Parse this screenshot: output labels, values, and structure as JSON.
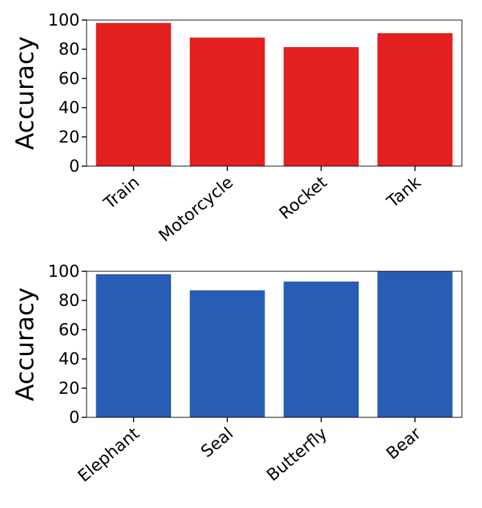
{
  "chart_data": [
    {
      "type": "bar",
      "categories": [
        "Train",
        "Motorcycle",
        "Rocket",
        "Tank"
      ],
      "values": [
        98,
        88,
        81.5,
        91
      ],
      "ylabel": "Accuracy",
      "xlabel": "",
      "ylim": [
        0,
        100
      ],
      "yticks": [
        "0",
        "20",
        "40",
        "60",
        "80",
        "100"
      ],
      "bar_color": "#e31f1f",
      "grid": false
    },
    {
      "type": "bar",
      "categories": [
        "Elephant",
        "Seal",
        "Butterfly",
        "Bear"
      ],
      "values": [
        98,
        87,
        93,
        100
      ],
      "ylabel": "Accuracy",
      "xlabel": "",
      "ylim": [
        0,
        100
      ],
      "yticks": [
        "0",
        "20",
        "40",
        "60",
        "80",
        "100"
      ],
      "bar_color": "#285db5",
      "grid": false
    }
  ]
}
